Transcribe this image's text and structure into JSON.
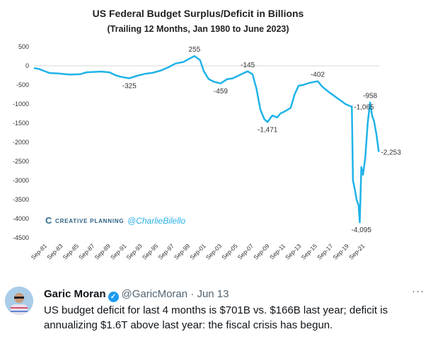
{
  "chart_data": {
    "type": "line",
    "title": "US Federal Budget Surplus/Deficit in Billions",
    "subtitle": "(Trailing  12 Months, Jan 1980 to June 2023)",
    "xlabel": "",
    "ylabel": "",
    "ylim": [
      -4500,
      500
    ],
    "xlim": [
      1980.0,
      2023.45
    ],
    "yticks": [
      "500",
      "0",
      "-500",
      "-1000",
      "-1500",
      "-2000",
      "-2500",
      "-3000",
      "-3500",
      "-4000",
      "-4500"
    ],
    "xticks": [
      "Sep-81",
      "Sep-83",
      "Sep-85",
      "Sep-87",
      "Sep-89",
      "Sep-91",
      "Sep-93",
      "Sep-95",
      "Sep-97",
      "Sep-99",
      "Sep-01",
      "Sep-03",
      "Sep-05",
      "Sep-07",
      "Sep-09",
      "Sep-11",
      "Sep-13",
      "Sep-15",
      "Sep-17",
      "Sep-19",
      "Sep-21"
    ],
    "series": [
      {
        "name": "Surplus/Deficit",
        "color": "#1fb3e8",
        "x": [
          1980.0,
          1980.6,
          1981.2,
          1982.0,
          1983.0,
          1984.5,
          1985.8,
          1986.6,
          1987.5,
          1988.5,
          1989.5,
          1990.3,
          1991.0,
          1992.0,
          1993.0,
          1994.0,
          1995.0,
          1996.0,
          1997.0,
          1997.8,
          1998.8,
          1999.5,
          2000.2,
          2000.9,
          2001.4,
          2002.0,
          2002.7,
          2003.5,
          2004.3,
          2005.0,
          2005.8,
          2006.5,
          2006.9,
          2007.5,
          2008.0,
          2008.5,
          2009.0,
          2009.4,
          2010.0,
          2010.6,
          2011.0,
          2011.5,
          2012.3,
          2012.8,
          2013.3,
          2013.9,
          2014.6,
          2015.7,
          2016.3,
          2017.2,
          2018.2,
          2019.2,
          2019.9,
          2020.0,
          2020.15,
          2020.4,
          2020.6,
          2020.85,
          2021.0,
          2021.2,
          2021.4,
          2021.7,
          2022.0,
          2022.3,
          2022.55,
          2022.8,
          2023.1,
          2023.4
        ],
        "values": [
          -60,
          -80,
          -130,
          -190,
          -200,
          -230,
          -220,
          -170,
          -160,
          -150,
          -170,
          -250,
          -290,
          -325,
          -260,
          -210,
          -180,
          -120,
          -30,
          60,
          100,
          180,
          255,
          150,
          -150,
          -350,
          -420,
          -459,
          -350,
          -330,
          -250,
          -180,
          -145,
          -220,
          -600,
          -1150,
          -1400,
          -1471,
          -1300,
          -1350,
          -1250,
          -1200,
          -1100,
          -750,
          -520,
          -500,
          -450,
          -402,
          -550,
          -700,
          -850,
          -1000,
          -1065,
          -1065,
          -3000,
          -3250,
          -3500,
          -3650,
          -4095,
          -2650,
          -2850,
          -2400,
          -1500,
          -958,
          -1300,
          -1450,
          -1800,
          -2253
        ]
      }
    ],
    "annotations": [
      {
        "label": "255",
        "x": 2000.2,
        "y": 255,
        "pos": "above"
      },
      {
        "label": "-325",
        "x": 1992.0,
        "y": -325,
        "pos": "below"
      },
      {
        "label": "-459",
        "x": 2003.5,
        "y": -459,
        "pos": "below"
      },
      {
        "label": "-145",
        "x": 2006.9,
        "y": -145,
        "pos": "above"
      },
      {
        "label": "-1,471",
        "x": 2009.4,
        "y": -1471,
        "pos": "below"
      },
      {
        "label": "-402",
        "x": 2015.7,
        "y": -402,
        "pos": "above"
      },
      {
        "label": "-1,065",
        "x": 2020.0,
        "y": -1065,
        "pos": "right"
      },
      {
        "label": "-958",
        "x": 2022.3,
        "y": -958,
        "pos": "above"
      },
      {
        "label": "-4,095",
        "x": 2021.2,
        "y": -4095,
        "pos": "below"
      },
      {
        "label": "-2,253",
        "x": 2023.4,
        "y": -2253,
        "pos": "right"
      }
    ],
    "grid": false,
    "watermark": {
      "brand": "CREATIVE PLANNING",
      "handle": "@CharlieBilello"
    }
  },
  "tweet": {
    "name": "Garic Moran",
    "handle": "@GaricMoran · Jun 13",
    "more": "···",
    "text": "US budget deficit for last 4 months is $701B vs. $166B last year; deficit is annualizing $1.6T above last year: the fiscal crisis has begun."
  }
}
